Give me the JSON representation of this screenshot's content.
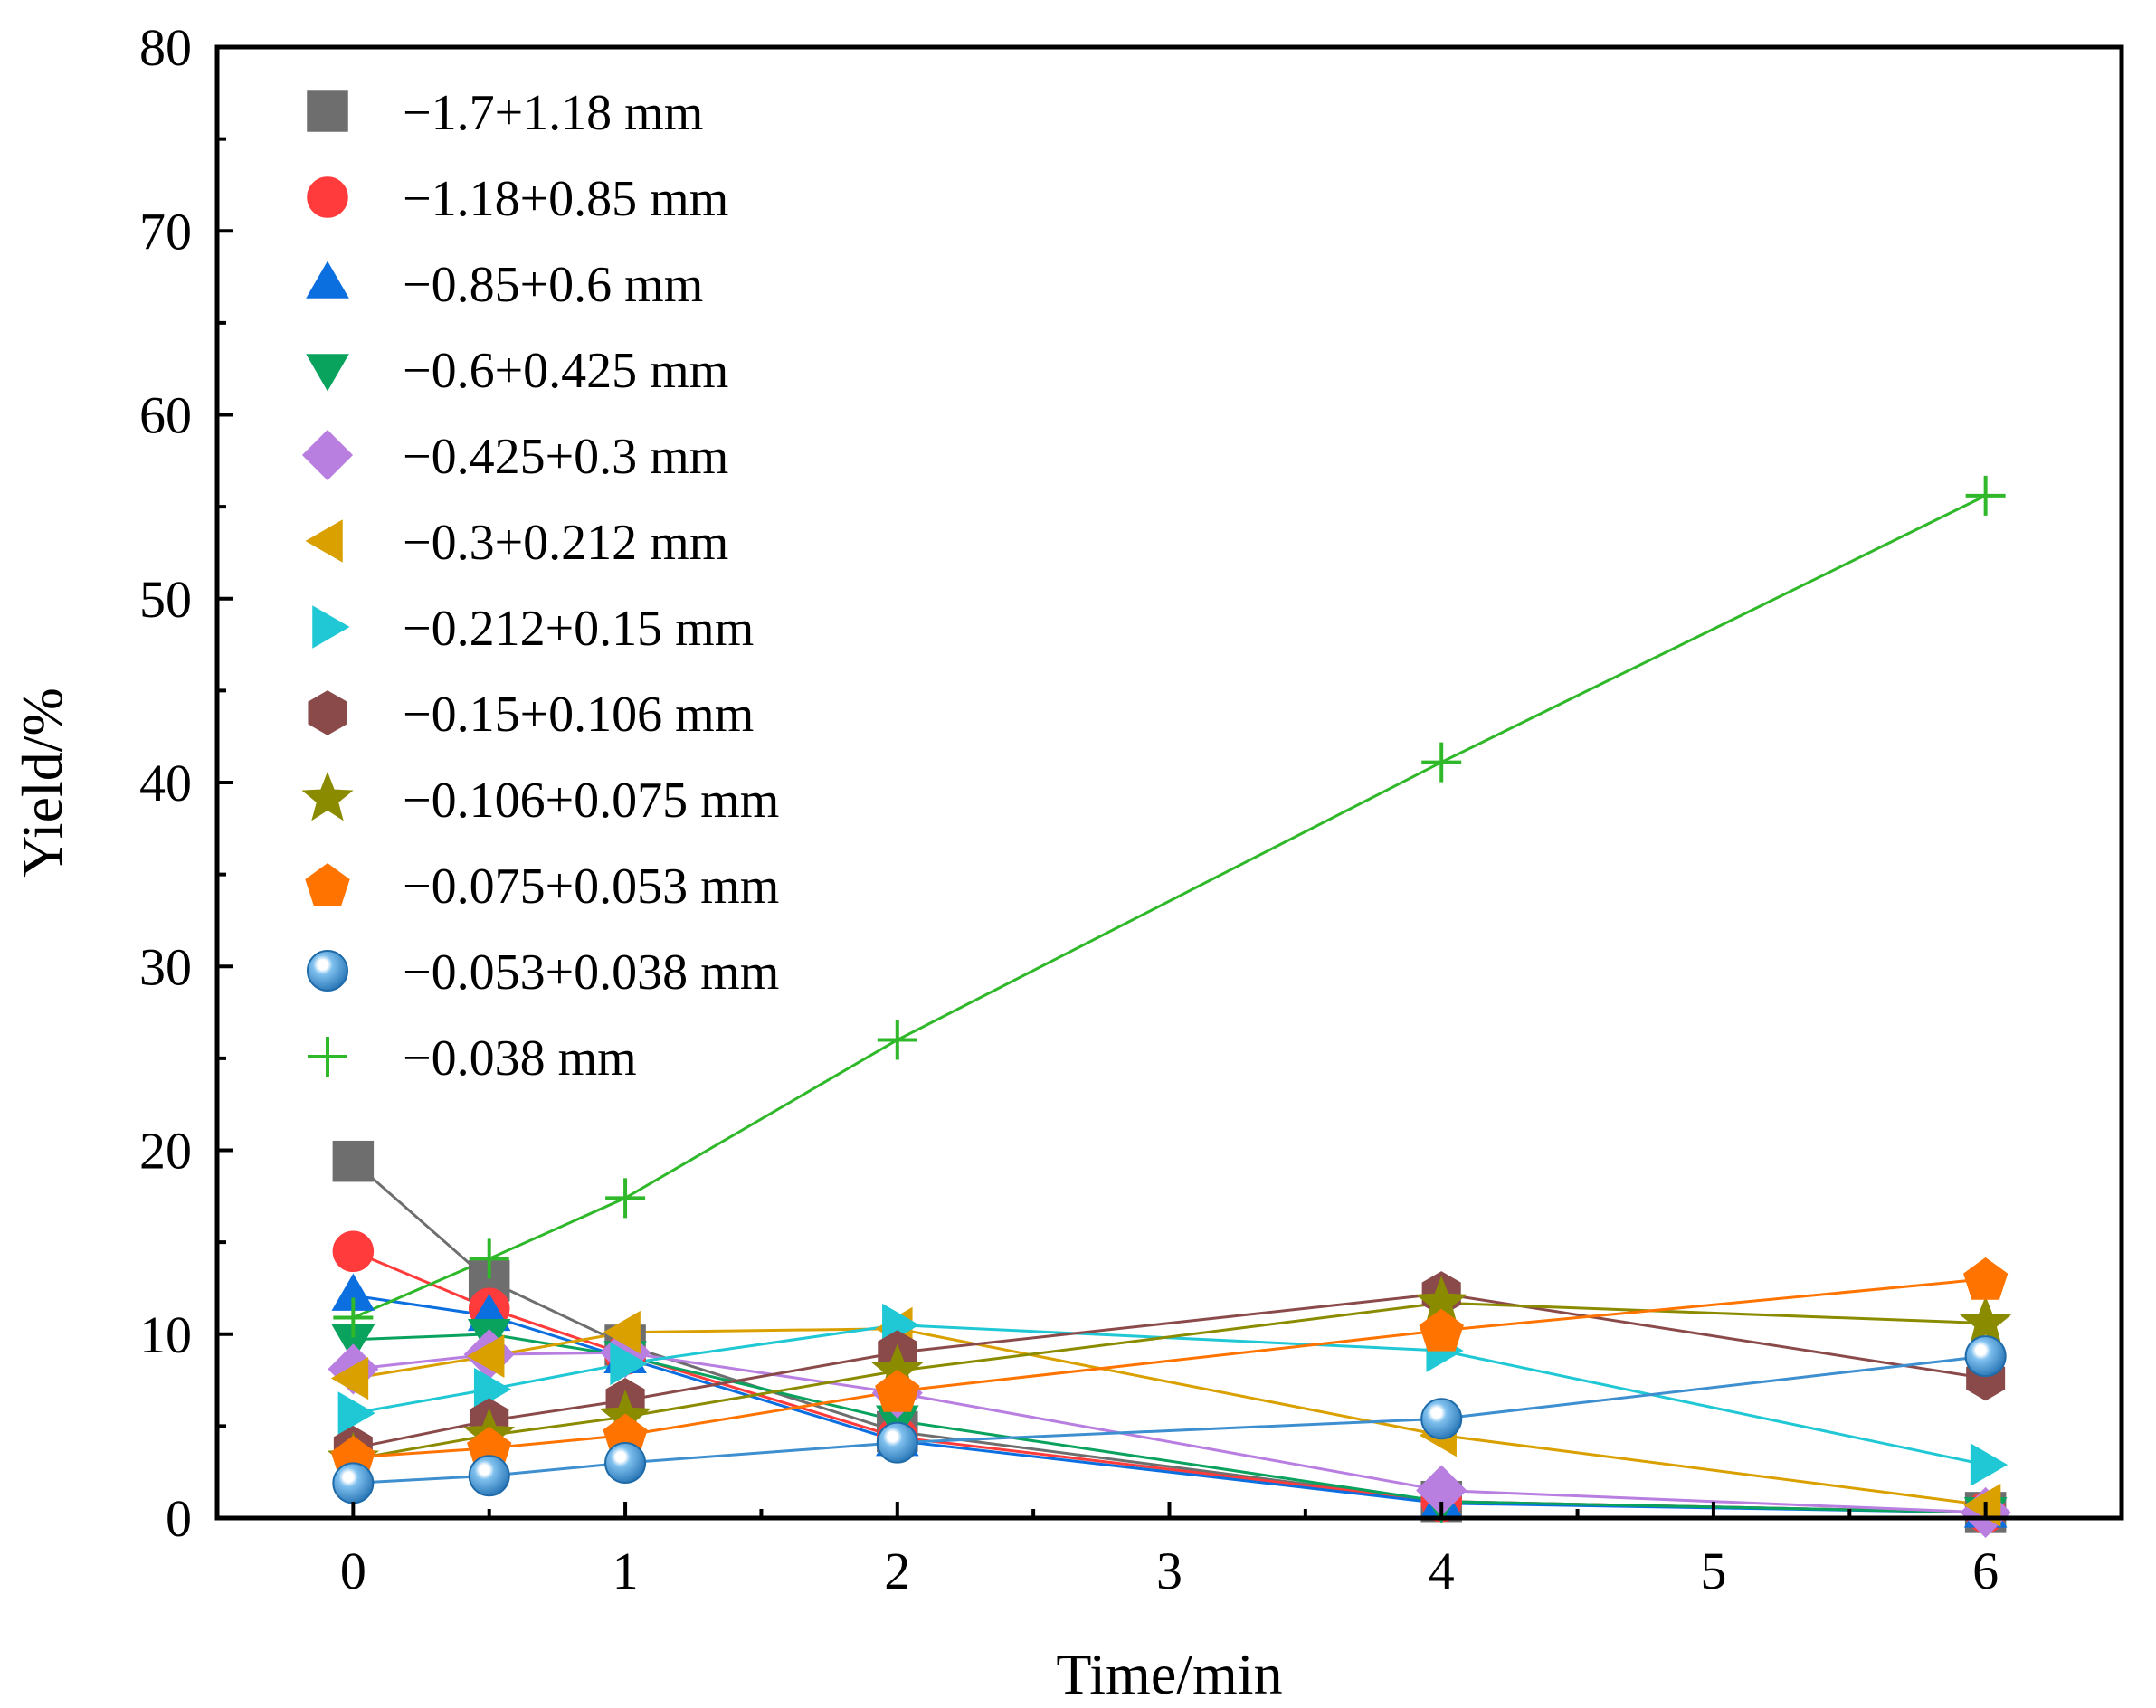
{
  "chart_data": {
    "type": "line",
    "title": "",
    "xlabel": "Time/min",
    "ylabel": "Yield/%",
    "xlim": [
      -0.5,
      6.5
    ],
    "ylim": [
      0,
      80
    ],
    "xticks": [
      0,
      1,
      2,
      3,
      4,
      5,
      6
    ],
    "xtick_labels": [
      "0",
      "1",
      "2",
      "3",
      "4",
      "5",
      "6"
    ],
    "yticks": [
      0,
      10,
      20,
      30,
      40,
      50,
      60,
      70,
      80
    ],
    "ytick_labels": [
      "0",
      "10",
      "20",
      "30",
      "40",
      "50",
      "60",
      "70",
      "80"
    ],
    "grid": false,
    "legend_position": "top-left",
    "x": [
      0,
      0.5,
      1,
      2,
      4,
      6
    ],
    "series": [
      {
        "name": "−1.7+1.18 mm",
        "marker": "square",
        "color": "#6e6e6e",
        "values": [
          19.4,
          12.9,
          9.4,
          4.7,
          0.9,
          0.3
        ]
      },
      {
        "name": "−1.18+0.85 mm",
        "marker": "circle",
        "color": "#ff3b3b",
        "values": [
          14.5,
          11.4,
          8.9,
          4.4,
          0.9,
          0.3
        ]
      },
      {
        "name": "−0.85+0.6 mm",
        "marker": "triangle-up",
        "color": "#0b6fe0",
        "values": [
          12.1,
          11.0,
          8.7,
          4.2,
          0.8,
          0.3
        ]
      },
      {
        "name": "−0.6+0.425 mm",
        "marker": "triangle-down",
        "color": "#0aa35e",
        "values": [
          9.7,
          10.0,
          8.8,
          5.3,
          0.9,
          0.3
        ]
      },
      {
        "name": "−0.425+0.3 mm",
        "marker": "diamond",
        "color": "#b87ee0",
        "values": [
          8.1,
          8.9,
          9.0,
          6.8,
          1.5,
          0.3
        ]
      },
      {
        "name": "−0.3+0.212 mm",
        "marker": "triangle-left",
        "color": "#d9a000",
        "values": [
          7.6,
          8.8,
          10.1,
          10.3,
          4.5,
          0.7
        ]
      },
      {
        "name": "−0.212+0.15 mm",
        "marker": "triangle-right",
        "color": "#1fc8d4",
        "values": [
          5.7,
          7.0,
          8.4,
          10.5,
          9.1,
          2.9
        ]
      },
      {
        "name": "−0.15+0.106 mm",
        "marker": "hexagon",
        "color": "#8b4a4a",
        "values": [
          3.8,
          5.3,
          6.4,
          9.0,
          12.2,
          7.6
        ]
      },
      {
        "name": "−0.106+0.075 mm",
        "marker": "star",
        "color": "#8b8b00",
        "values": [
          3.2,
          4.5,
          5.5,
          8.0,
          11.7,
          10.6
        ]
      },
      {
        "name": "−0.075+0.053 mm",
        "marker": "pentagon",
        "color": "#ff7400",
        "values": [
          3.3,
          3.8,
          4.5,
          6.9,
          10.2,
          13.0
        ]
      },
      {
        "name": "−0.053+0.038 mm",
        "marker": "sphere",
        "color": "#3d8fd0",
        "values": [
          1.9,
          2.3,
          3.0,
          4.1,
          5.4,
          8.8
        ]
      },
      {
        "name": "−0.038 mm",
        "marker": "plus",
        "color": "#2fb82a",
        "values": [
          10.9,
          14.1,
          17.4,
          26.0,
          41.1,
          55.6
        ]
      }
    ]
  }
}
